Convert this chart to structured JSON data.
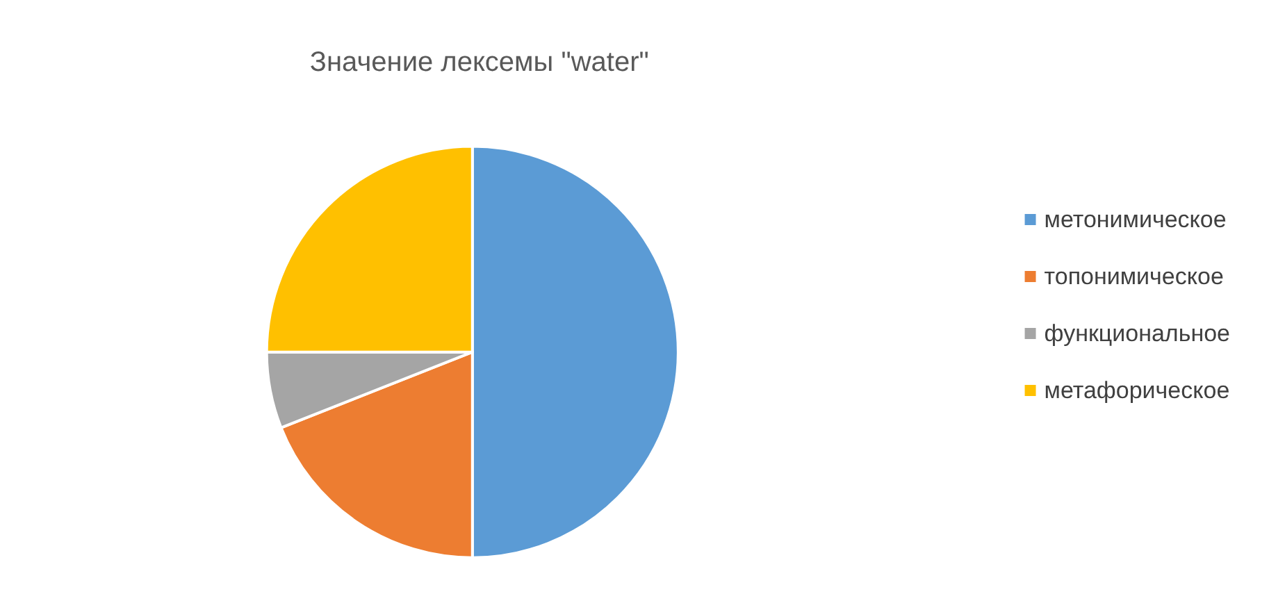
{
  "chart_data": {
    "type": "pie",
    "title": "Значение лексемы \"water\"",
    "categories": [
      "метонимическое",
      "топонимическое",
      "функциональное",
      "метафорическое"
    ],
    "values": [
      50,
      19,
      6,
      25
    ],
    "colors": [
      "#5b9bd5",
      "#ed7d31",
      "#a5a5a5",
      "#ffc000"
    ],
    "legend": "right"
  }
}
